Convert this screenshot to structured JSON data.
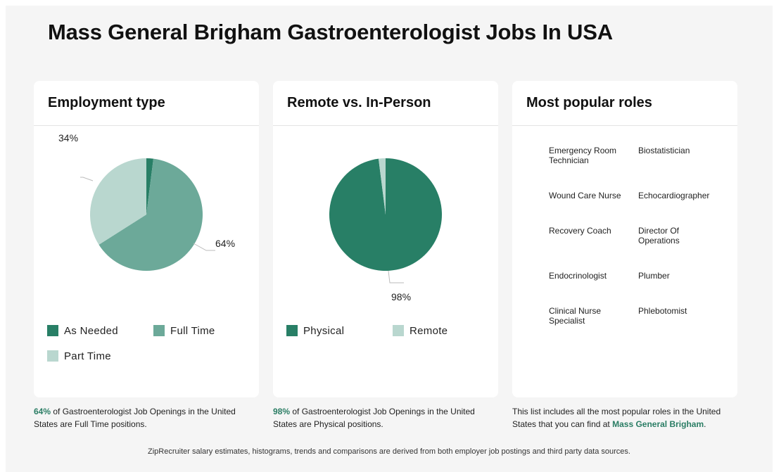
{
  "page": {
    "title": "Mass General Brigham Gastroenterologist Jobs In USA",
    "footer": "ZipRecruiter salary estimates, histograms, trends and comparisons are derived from both employer job postings and third party data sources."
  },
  "colors": {
    "dark": "#287f66",
    "medium": "#6ca999",
    "light": "#b9d7cf",
    "accent": "#2a7d64"
  },
  "employment": {
    "heading": "Employment type",
    "caption_pct": "64%",
    "caption_text": " of Gastroenterologist Job Openings in the United States are Full Time positions.",
    "legend": [
      "As Needed",
      "Full Time",
      "Part Time"
    ]
  },
  "remote": {
    "heading": "Remote vs. In-Person",
    "caption_pct": "98%",
    "caption_text": " of Gastroenterologist Job Openings in the United States are Physical positions.",
    "legend": [
      "Physical",
      "Remote"
    ]
  },
  "roles": {
    "heading": "Most popular roles",
    "items": [
      "Emergency Room Technician",
      "Biostatistician",
      "Wound Care Nurse",
      "Echocardiographer",
      "Recovery Coach",
      "Director Of Operations",
      "Endocrinologist",
      "Plumber",
      "Clinical Nurse Specialist",
      "Phlebotomist"
    ],
    "caption_pre": "This list includes all the most popular roles in the United States that you can find at ",
    "caption_link": "Mass General Brigham",
    "caption_post": "."
  },
  "chart_data": [
    {
      "type": "pie",
      "title": "Employment type",
      "categories": [
        "As Needed",
        "Full Time",
        "Part Time"
      ],
      "values": [
        2,
        64,
        34
      ],
      "labels": [
        "",
        "64%",
        "34%"
      ],
      "colors": [
        "#287f66",
        "#6ca999",
        "#b9d7cf"
      ]
    },
    {
      "type": "pie",
      "title": "Remote vs. In-Person",
      "categories": [
        "Physical",
        "Remote"
      ],
      "values": [
        98,
        2
      ],
      "labels": [
        "98%",
        ""
      ],
      "colors": [
        "#287f66",
        "#b9d7cf"
      ]
    }
  ]
}
